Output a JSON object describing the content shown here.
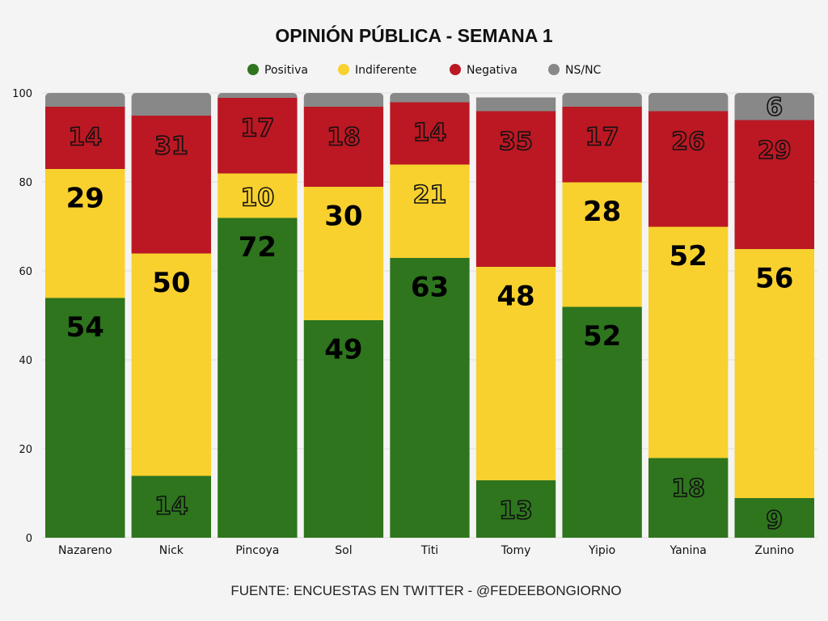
{
  "chart_data": {
    "type": "bar",
    "stacked": true,
    "title": "OPINIÓN PÚBLICA - SEMANA 1",
    "source": "FUENTE: ENCUESTAS EN TWITTER - @FEDEEBONGIORNO",
    "categories": [
      "Nazareno",
      "Nick",
      "Pincoya",
      "Sol",
      "Titi",
      "Tomy",
      "Yipio",
      "Yanina",
      "Zunino"
    ],
    "series": [
      {
        "name": "Positiva",
        "color": "#2e751e",
        "values": [
          54,
          14,
          72,
          49,
          63,
          13,
          52,
          18,
          9
        ]
      },
      {
        "name": "Indiferente",
        "color": "#f8d12f",
        "values": [
          29,
          50,
          10,
          30,
          21,
          48,
          28,
          52,
          56
        ]
      },
      {
        "name": "Negativa",
        "color": "#bb1823",
        "values": [
          14,
          31,
          17,
          18,
          14,
          35,
          17,
          26,
          29
        ]
      },
      {
        "name": "NS/NC",
        "color": "#888888",
        "values": [
          3,
          5,
          1,
          3,
          2,
          3,
          3,
          4,
          6
        ]
      }
    ],
    "data_labels": [
      [
        "54",
        "14",
        "72",
        "49",
        "63",
        "13",
        "52",
        "18",
        "9"
      ],
      [
        "29",
        "50",
        "10",
        "30",
        "21",
        "48",
        "28",
        "52",
        "56"
      ],
      [
        "14",
        "31",
        "17",
        "18",
        "14",
        "35",
        "17",
        "26",
        "29"
      ],
      [
        "",
        "",
        "",
        "",
        "",
        "",
        "",
        "",
        "6"
      ]
    ],
    "ylim": [
      0,
      100
    ],
    "yticks": [
      0,
      20,
      40,
      60,
      80,
      100
    ],
    "grid": true,
    "legend": "top-center",
    "xlabel": "",
    "ylabel": ""
  }
}
